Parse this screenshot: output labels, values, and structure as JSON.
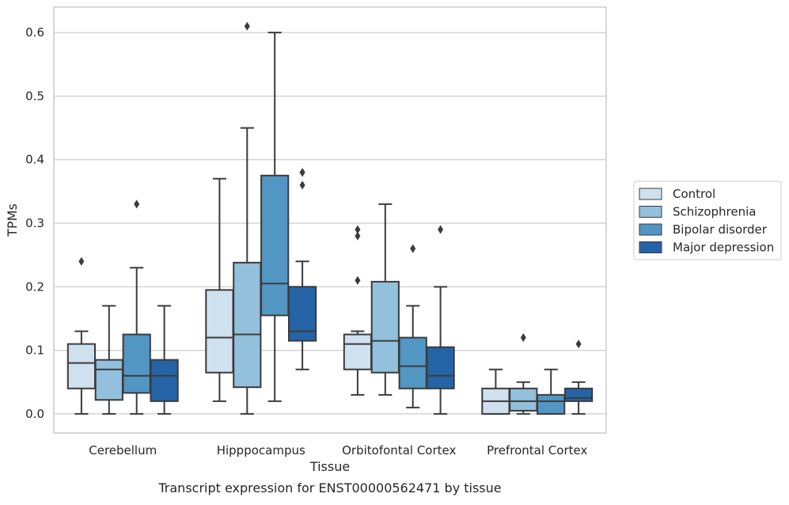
{
  "chart_data": {
    "type": "boxplot",
    "caption": "Transcript expression for ENST00000562471 by tissue",
    "xlabel": "Tissue",
    "ylabel": "TPMs",
    "ylim": [
      -0.03,
      0.64
    ],
    "yticks": [
      0.0,
      0.1,
      0.2,
      0.3,
      0.4,
      0.5,
      0.6
    ],
    "ytick_labels": [
      "0.0",
      "0.1",
      "0.2",
      "0.3",
      "0.4",
      "0.5",
      "0.6"
    ],
    "grid": true,
    "legend_position": "right",
    "categories": [
      "Cerebellum",
      "Hipppocampus",
      "Orbitofontal Cortex",
      "Prefrontal Cortex"
    ],
    "series": [
      {
        "name": "Control",
        "color": "#cfe0ef",
        "boxes": [
          {
            "whislo": 0.0,
            "q1": 0.04,
            "med": 0.08,
            "q3": 0.11,
            "whishi": 0.13,
            "fliers": [
              0.24
            ]
          },
          {
            "whislo": 0.02,
            "q1": 0.065,
            "med": 0.12,
            "q3": 0.195,
            "whishi": 0.37,
            "fliers": []
          },
          {
            "whislo": 0.03,
            "q1": 0.07,
            "med": 0.11,
            "q3": 0.125,
            "whishi": 0.13,
            "fliers": [
              0.21,
              0.28,
              0.29
            ]
          },
          {
            "whislo": 0.0,
            "q1": 0.0,
            "med": 0.02,
            "q3": 0.04,
            "whishi": 0.07,
            "fliers": []
          }
        ]
      },
      {
        "name": "Schizophrenia",
        "color": "#93c0dc",
        "boxes": [
          {
            "whislo": 0.0,
            "q1": 0.022,
            "med": 0.07,
            "q3": 0.085,
            "whishi": 0.17,
            "fliers": []
          },
          {
            "whislo": 0.0,
            "q1": 0.042,
            "med": 0.125,
            "q3": 0.238,
            "whishi": 0.45,
            "fliers": [
              0.61
            ]
          },
          {
            "whislo": 0.03,
            "q1": 0.065,
            "med": 0.115,
            "q3": 0.208,
            "whishi": 0.33,
            "fliers": []
          },
          {
            "whislo": 0.0,
            "q1": 0.005,
            "med": 0.02,
            "q3": 0.04,
            "whishi": 0.05,
            "fliers": [
              0.12
            ]
          }
        ]
      },
      {
        "name": "Bipolar disorder",
        "color": "#5296c4",
        "boxes": [
          {
            "whislo": 0.0,
            "q1": 0.033,
            "med": 0.06,
            "q3": 0.125,
            "whishi": 0.23,
            "fliers": [
              0.33
            ]
          },
          {
            "whislo": 0.02,
            "q1": 0.155,
            "med": 0.205,
            "q3": 0.375,
            "whishi": 0.6,
            "fliers": []
          },
          {
            "whislo": 0.01,
            "q1": 0.04,
            "med": 0.075,
            "q3": 0.12,
            "whishi": 0.17,
            "fliers": [
              0.26
            ]
          },
          {
            "whislo": 0.0,
            "q1": 0.0,
            "med": 0.02,
            "q3": 0.03,
            "whishi": 0.07,
            "fliers": []
          }
        ]
      },
      {
        "name": "Major depression",
        "color": "#2464a6",
        "boxes": [
          {
            "whislo": 0.0,
            "q1": 0.02,
            "med": 0.06,
            "q3": 0.085,
            "whishi": 0.17,
            "fliers": []
          },
          {
            "whislo": 0.07,
            "q1": 0.115,
            "med": 0.13,
            "q3": 0.2,
            "whishi": 0.24,
            "fliers": [
              0.36,
              0.38,
              0.38
            ]
          },
          {
            "whislo": 0.0,
            "q1": 0.04,
            "med": 0.06,
            "q3": 0.105,
            "whishi": 0.2,
            "fliers": [
              0.29
            ]
          },
          {
            "whislo": 0.0,
            "q1": 0.02,
            "med": 0.025,
            "q3": 0.04,
            "whishi": 0.05,
            "fliers": [
              0.11
            ]
          }
        ]
      }
    ]
  }
}
